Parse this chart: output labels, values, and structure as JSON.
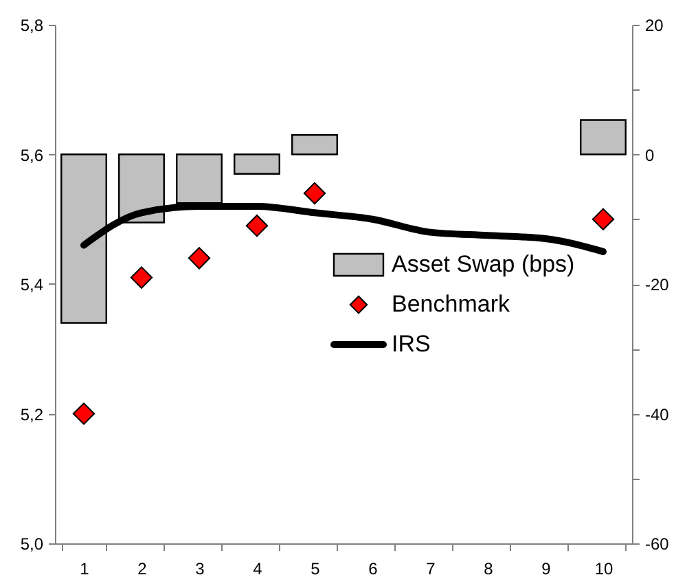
{
  "chart_data": {
    "type": "bar",
    "categories": [
      "1",
      "2",
      "3",
      "4",
      "5",
      "6",
      "7",
      "8",
      "9",
      "10"
    ],
    "series": [
      {
        "name": "Asset Swap (bps)",
        "axis": "y2",
        "color": "#c0c0c0",
        "values": [
          -26,
          -10.5,
          -7.5,
          -3,
          3,
          null,
          null,
          null,
          null,
          5.3
        ]
      },
      {
        "name": "Benchmark",
        "type": "scatter",
        "marker": "diamond",
        "color": "#ff0000",
        "values": [
          5.2,
          5.41,
          5.44,
          5.49,
          5.54,
          null,
          null,
          null,
          null,
          5.5
        ]
      },
      {
        "name": "IRS",
        "type": "line",
        "marker": "none",
        "line_style": "solid",
        "color": "#000000",
        "values": [
          5.46,
          5.51,
          5.52,
          5.52,
          5.51,
          5.5,
          5.48,
          5.475,
          5.47,
          5.45
        ]
      }
    ],
    "ylim": [
      5.0,
      5.8
    ],
    "yticks": [
      {
        "value": 5.0,
        "label": "5,0"
      },
      {
        "value": 5.2,
        "label": "5,2"
      },
      {
        "value": 5.4,
        "label": "5,4"
      },
      {
        "value": 5.6,
        "label": "5,6"
      },
      {
        "value": 5.8,
        "label": "5,8"
      }
    ],
    "y2lim": [
      -60,
      20
    ],
    "y2ticks": [
      -60,
      {
        "value": -50,
        "label": null
      },
      -40,
      {
        "value": -30,
        "label": null
      },
      -20,
      {
        "value": -10,
        "label": null
      },
      0,
      {
        "value": 10,
        "label": null
      },
      20
    ],
    "grid": false,
    "legend": "right"
  }
}
